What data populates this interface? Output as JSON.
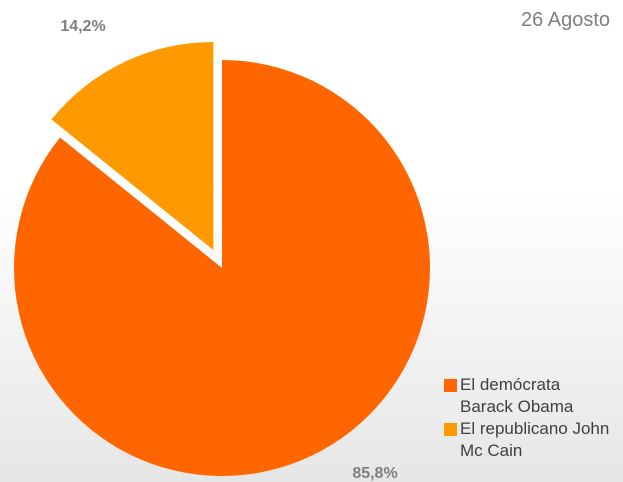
{
  "chart_data": {
    "type": "pie",
    "title": "26 Agosto",
    "categories": [
      "El demócrata Barack Obama",
      "El republicano John Mc Cain"
    ],
    "values": [
      85.8,
      14.2
    ],
    "value_labels": [
      "85,8%",
      "14,2%"
    ],
    "colors": [
      "#ff6600",
      "#ff9900"
    ],
    "legend": "right"
  }
}
